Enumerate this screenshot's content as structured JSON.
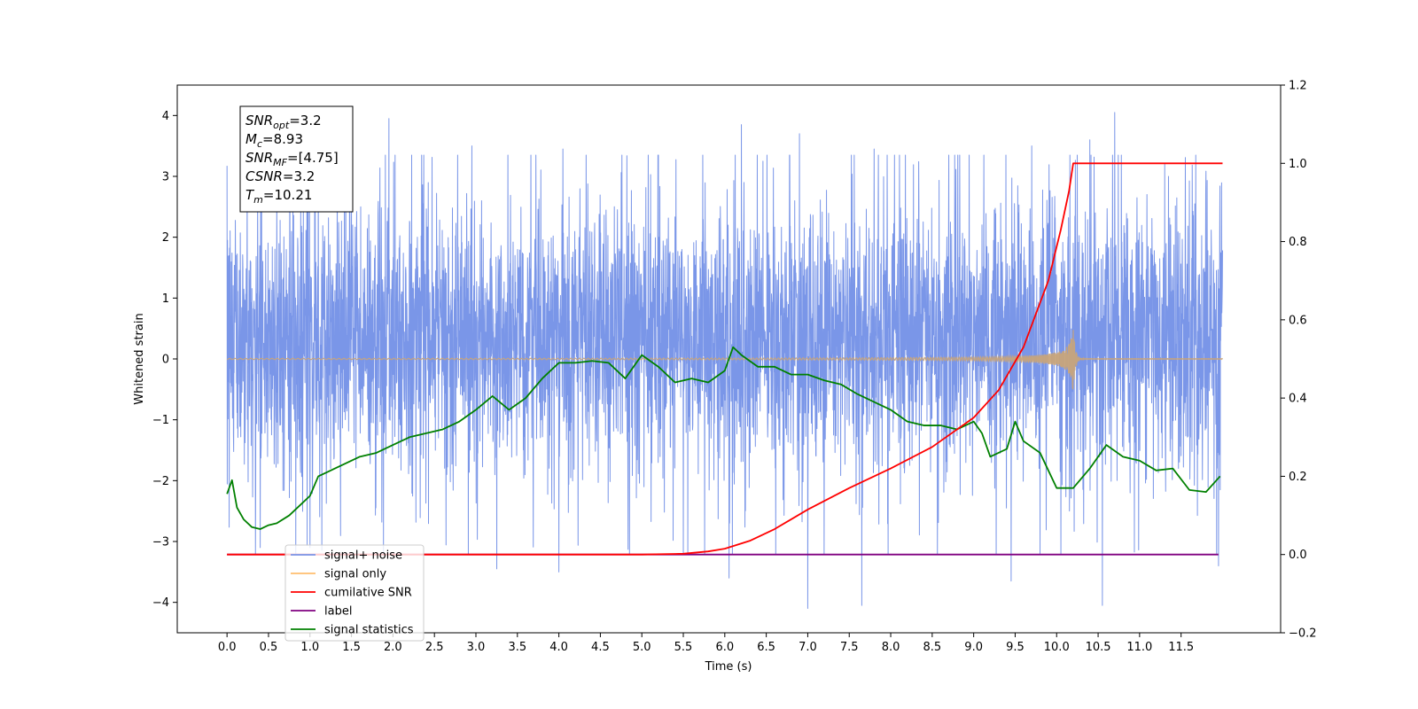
{
  "chart_data": {
    "type": "line",
    "xlabel": "Time (s)",
    "ylabel": "Whitened strain",
    "xlim": [
      -0.6,
      12.7
    ],
    "ylim": [
      -4.5,
      4.5
    ],
    "y2lim": [
      -0.2,
      1.2
    ],
    "x_ticks": [
      0.0,
      0.5,
      1.0,
      1.5,
      2.0,
      2.5,
      3.0,
      3.5,
      4.0,
      4.5,
      5.0,
      5.5,
      6.0,
      6.5,
      7.0,
      7.5,
      8.0,
      8.5,
      9.0,
      9.5,
      10.0,
      10.5,
      11.0,
      11.5
    ],
    "x_tick_labels": [
      "0.0",
      "0.5",
      "1.0",
      "1.5",
      "2.0",
      "2.5",
      "3.0",
      "3.5",
      "4.0",
      "4.5",
      "5.0",
      "5.5",
      "6.0",
      "6.5",
      "7.0",
      "7.5",
      "8.0",
      "8.5",
      "9.0",
      "9.5",
      "10.0",
      "10.5",
      "11.0",
      "11.5"
    ],
    "y_ticks": [
      -4,
      -3,
      -2,
      -1,
      0,
      1,
      2,
      3,
      4
    ],
    "y_tick_labels": [
      "−4",
      "−3",
      "−2",
      "−1",
      "0",
      "1",
      "2",
      "3",
      "4"
    ],
    "y2_ticks": [
      -0.2,
      0.0,
      0.2,
      0.4,
      0.6,
      0.8,
      1.0,
      1.2
    ],
    "y2_tick_labels": [
      "−0.2",
      "0.0",
      "0.2",
      "0.4",
      "0.6",
      "0.8",
      "1.0",
      "1.2"
    ],
    "grid": false,
    "legend_position": "lower-left",
    "annotation": {
      "lines": [
        {
          "base": "SNR",
          "sub": "opt",
          "rest": "=3.2"
        },
        {
          "base": "M",
          "sub": "c",
          "rest": "=8.93"
        },
        {
          "base": "SNR",
          "sub": "MF",
          "rest": "=[4.75]"
        },
        {
          "base": "CSNR",
          "sub": "",
          "rest": "=3.2"
        },
        {
          "base": "T",
          "sub": "m",
          "rest": "=10.21"
        }
      ]
    },
    "series": [
      {
        "name": "signal+ noise",
        "axis": "left",
        "color": "#7a96e8",
        "x_start": 0.0,
        "x_end": 12.0,
        "typical_range": [
          -1.5,
          2.2
        ],
        "peaks_high": [
          [
            0.6,
            2.9
          ],
          [
            1.1,
            3.3
          ],
          [
            1.95,
            3.95
          ],
          [
            2.95,
            3.5
          ],
          [
            4.05,
            3.45
          ],
          [
            6.2,
            3.85
          ],
          [
            6.9,
            3.7
          ],
          [
            7.8,
            3.45
          ],
          [
            9.7,
            3.5
          ],
          [
            10.4,
            3.6
          ],
          [
            10.7,
            4.05
          ]
        ],
        "peaks_low": [
          [
            0.4,
            -3.1
          ],
          [
            1.0,
            -3.1
          ],
          [
            3.25,
            -3.45
          ],
          [
            4.0,
            -3.5
          ],
          [
            5.5,
            -3.2
          ],
          [
            6.05,
            -3.6
          ],
          [
            7.0,
            -4.1
          ],
          [
            7.65,
            -4.05
          ],
          [
            9.45,
            -3.65
          ],
          [
            10.55,
            -4.05
          ],
          [
            11.95,
            -3.4
          ]
        ]
      },
      {
        "name": "signal only",
        "axis": "left",
        "color": "#c8a47a",
        "x_start": 0.0,
        "x_end": 12.0,
        "merger_time": 10.2,
        "peak_amplitude": 0.55
      },
      {
        "name": "cumilative SNR",
        "axis": "right",
        "color": "#ff0000",
        "x": [
          0.0,
          5.0,
          5.5,
          5.8,
          6.0,
          6.3,
          6.6,
          7.0,
          7.5,
          8.0,
          8.5,
          9.0,
          9.3,
          9.6,
          9.9,
          10.05,
          10.15,
          10.2,
          11.5,
          12.0
        ],
        "y": [
          0.0,
          0.0,
          0.002,
          0.008,
          0.015,
          0.035,
          0.065,
          0.115,
          0.17,
          0.22,
          0.275,
          0.35,
          0.42,
          0.53,
          0.7,
          0.83,
          0.93,
          1.0,
          1.0,
          1.0
        ]
      },
      {
        "name": "label",
        "axis": "right",
        "color": "#800080",
        "x": [
          0.0,
          11.95
        ],
        "y": [
          0.0,
          0.0
        ]
      },
      {
        "name": "signal statistics",
        "axis": "right",
        "color": "#008000",
        "x": [
          0.0,
          0.06,
          0.12,
          0.2,
          0.3,
          0.4,
          0.5,
          0.6,
          0.75,
          0.9,
          1.0,
          1.1,
          1.2,
          1.4,
          1.6,
          1.8,
          2.0,
          2.2,
          2.4,
          2.6,
          2.8,
          3.0,
          3.2,
          3.4,
          3.6,
          3.8,
          3.95,
          4.0,
          4.2,
          4.4,
          4.6,
          4.8,
          5.0,
          5.2,
          5.4,
          5.6,
          5.8,
          6.0,
          6.1,
          6.2,
          6.4,
          6.6,
          6.8,
          7.0,
          7.2,
          7.4,
          7.6,
          7.8,
          8.0,
          8.2,
          8.4,
          8.6,
          8.8,
          9.0,
          9.1,
          9.2,
          9.4,
          9.5,
          9.6,
          9.8,
          10.0,
          10.2,
          10.4,
          10.6,
          10.8,
          11.0,
          11.2,
          11.4,
          11.6,
          11.8,
          11.97
        ],
        "y": [
          0.155,
          0.19,
          0.12,
          0.09,
          0.07,
          0.065,
          0.075,
          0.08,
          0.1,
          0.13,
          0.15,
          0.2,
          0.21,
          0.23,
          0.25,
          0.26,
          0.28,
          0.3,
          0.31,
          0.32,
          0.34,
          0.37,
          0.405,
          0.37,
          0.4,
          0.45,
          0.48,
          0.49,
          0.49,
          0.495,
          0.49,
          0.45,
          0.51,
          0.48,
          0.44,
          0.45,
          0.44,
          0.47,
          0.53,
          0.51,
          0.48,
          0.48,
          0.46,
          0.46,
          0.445,
          0.435,
          0.41,
          0.39,
          0.37,
          0.34,
          0.33,
          0.33,
          0.32,
          0.34,
          0.31,
          0.25,
          0.27,
          0.34,
          0.29,
          0.26,
          0.17,
          0.17,
          0.22,
          0.28,
          0.25,
          0.24,
          0.215,
          0.22,
          0.165,
          0.16,
          0.2
        ]
      }
    ],
    "legend": [
      {
        "label": "signal+ noise",
        "color": "#7a96e8"
      },
      {
        "label": "signal only",
        "color": "#ffbe6e"
      },
      {
        "label": "cumilative SNR",
        "color": "#ff0000"
      },
      {
        "label": "label",
        "color": "#800080"
      },
      {
        "label": "signal statistics",
        "color": "#008000"
      }
    ]
  }
}
